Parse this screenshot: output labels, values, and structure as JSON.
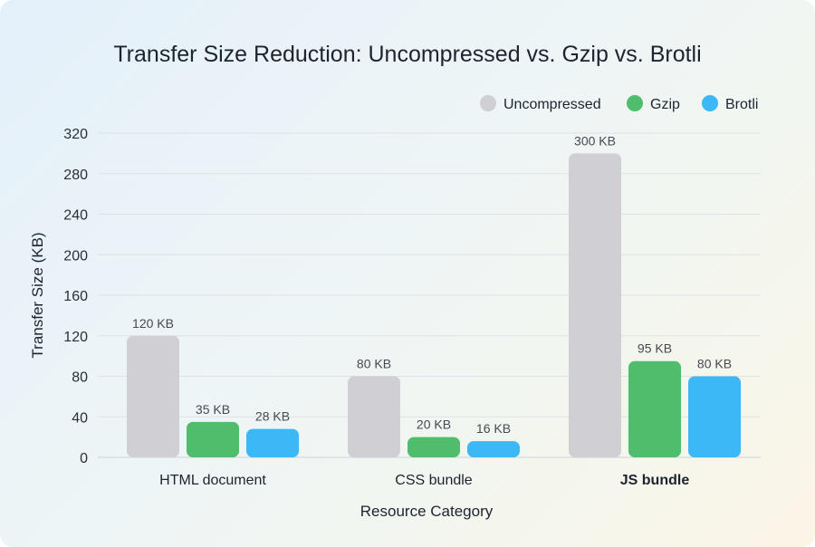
{
  "chart_data": {
    "type": "bar",
    "title": "Transfer Size Reduction: Uncompressed vs. Gzip vs. Brotli",
    "xlabel": "Resource Category",
    "ylabel": "Transfer Size (KB)",
    "ylim": [
      0,
      320
    ],
    "yticks": [
      0,
      40,
      80,
      120,
      160,
      200,
      240,
      280,
      320
    ],
    "grid": true,
    "legend_position": "top-right",
    "categories": [
      "HTML document",
      "CSS bundle",
      "JS bundle"
    ],
    "highlighted_category": "JS bundle",
    "series": [
      {
        "name": "Uncompressed",
        "color": "#cfcfd4",
        "values": [
          120,
          80,
          300
        ],
        "labels": [
          "120 KB",
          "80 KB",
          "300 KB"
        ]
      },
      {
        "name": "Gzip",
        "color": "#4fbd6b",
        "values": [
          35,
          20,
          95
        ],
        "labels": [
          "35 KB",
          "20 KB",
          "95 KB"
        ]
      },
      {
        "name": "Brotli",
        "color": "#3bb8f5",
        "values": [
          28,
          16,
          80
        ],
        "labels": [
          "28 KB",
          "16 KB",
          "80 KB"
        ]
      }
    ]
  }
}
